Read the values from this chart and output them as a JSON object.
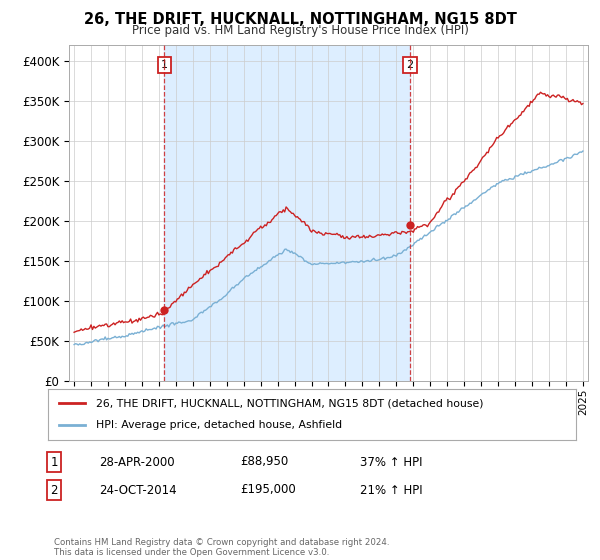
{
  "title": "26, THE DRIFT, HUCKNALL, NOTTINGHAM, NG15 8DT",
  "subtitle": "Price paid vs. HM Land Registry's House Price Index (HPI)",
  "legend_line1": "26, THE DRIFT, HUCKNALL, NOTTINGHAM, NG15 8DT (detached house)",
  "legend_line2": "HPI: Average price, detached house, Ashfield",
  "footer": "Contains HM Land Registry data © Crown copyright and database right 2024.\nThis data is licensed under the Open Government Licence v3.0.",
  "transaction1_date": "28-APR-2000",
  "transaction1_price": "£88,950",
  "transaction1_hpi": "37% ↑ HPI",
  "transaction1_year": 2000.33,
  "transaction1_value": 88950,
  "transaction2_date": "24-OCT-2014",
  "transaction2_price": "£195,000",
  "transaction2_hpi": "21% ↑ HPI",
  "transaction2_year": 2014.81,
  "transaction2_value": 195000,
  "red_color": "#cc2222",
  "blue_color": "#7ab0d4",
  "shade_color": "#ddeeff",
  "dashed_color": "#cc2222",
  "ylim": [
    0,
    420000
  ],
  "yticks": [
    0,
    50000,
    100000,
    150000,
    200000,
    250000,
    300000,
    350000,
    400000
  ],
  "ytick_labels": [
    "£0",
    "£50K",
    "£100K",
    "£150K",
    "£200K",
    "£250K",
    "£300K",
    "£350K",
    "£400K"
  ],
  "xlim_start": 1994.7,
  "xlim_end": 2025.3
}
